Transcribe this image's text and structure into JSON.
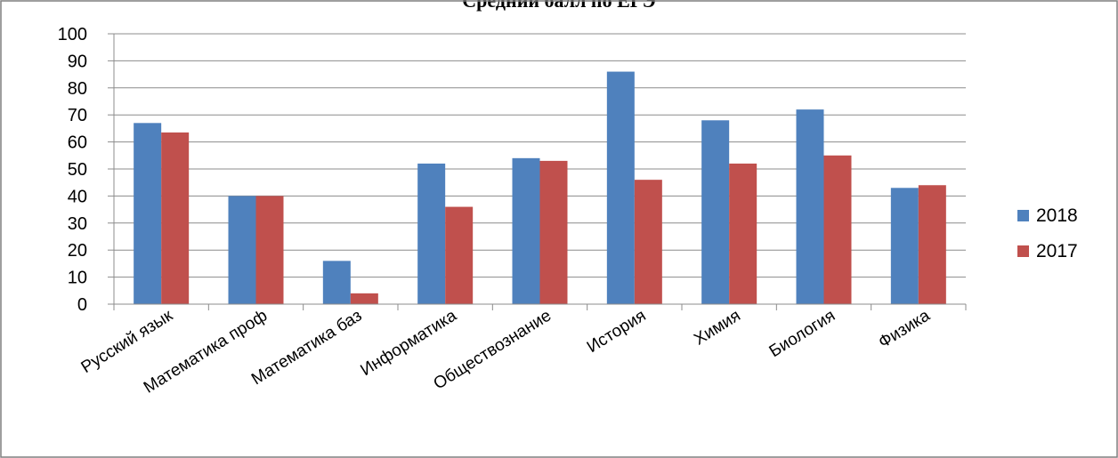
{
  "chart_data": {
    "type": "bar",
    "title": "Средний балл по ЕГЭ",
    "categories": [
      "Русский язык",
      "Математика проф",
      "Математика баз",
      "Информатика",
      "Обществознание",
      "История",
      "Химия",
      "Биология",
      "Физика"
    ],
    "series": [
      {
        "name": "2018",
        "color": "#4F81BD",
        "values": [
          67,
          40,
          16,
          52,
          54,
          86,
          68,
          72,
          43
        ]
      },
      {
        "name": "2017",
        "color": "#C0504D",
        "values": [
          63.5,
          40,
          4,
          36,
          53,
          46,
          52,
          55,
          44
        ]
      }
    ],
    "yticks": [
      0,
      10,
      20,
      30,
      40,
      50,
      60,
      70,
      80,
      90,
      100
    ],
    "ylim": [
      0,
      100
    ],
    "grid": true,
    "legend": "right"
  }
}
